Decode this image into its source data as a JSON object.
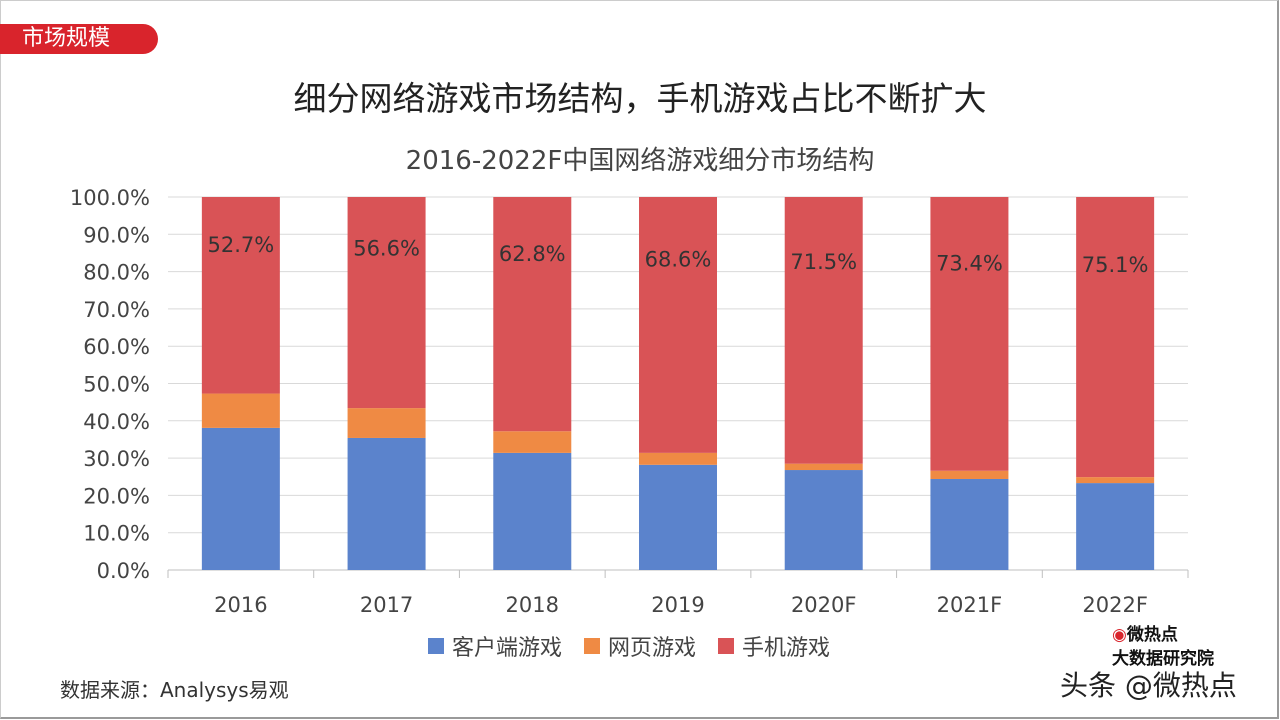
{
  "tag": "市场规模",
  "headline": "细分网络游戏市场结构，手机游戏占比不断扩大",
  "source": "数据来源：Analysys易观",
  "watermark": {
    "brand": "微热点",
    "institute": "大数据研究院",
    "handle": "头条 @微热点"
  },
  "chart_data": {
    "type": "bar",
    "stacked": true,
    "title": "2016-2022F中国网络游戏细分市场结构",
    "categories": [
      "2016",
      "2017",
      "2018",
      "2019",
      "2020F",
      "2021F",
      "2022F"
    ],
    "yticks": [
      "0.0%",
      "10.0%",
      "20.0%",
      "30.0%",
      "40.0%",
      "50.0%",
      "60.0%",
      "70.0%",
      "80.0%",
      "90.0%",
      "100.0%"
    ],
    "ylim": [
      0,
      100
    ],
    "grid": true,
    "legend": "bottom",
    "series": [
      {
        "name": "客户端游戏",
        "color": "#5b83cc",
        "values": [
          38.1,
          35.4,
          31.4,
          28.2,
          26.8,
          24.4,
          23.3
        ]
      },
      {
        "name": "网页游戏",
        "color": "#ef8a44",
        "values": [
          9.2,
          8.0,
          5.8,
          3.2,
          1.7,
          2.2,
          1.6
        ]
      },
      {
        "name": "手机游戏",
        "color": "#d95356",
        "values": [
          52.7,
          56.6,
          62.8,
          68.6,
          71.5,
          73.4,
          75.1
        ],
        "labels": [
          "52.7%",
          "56.6%",
          "62.8%",
          "68.6%",
          "71.5%",
          "73.4%",
          "75.1%"
        ]
      }
    ]
  }
}
